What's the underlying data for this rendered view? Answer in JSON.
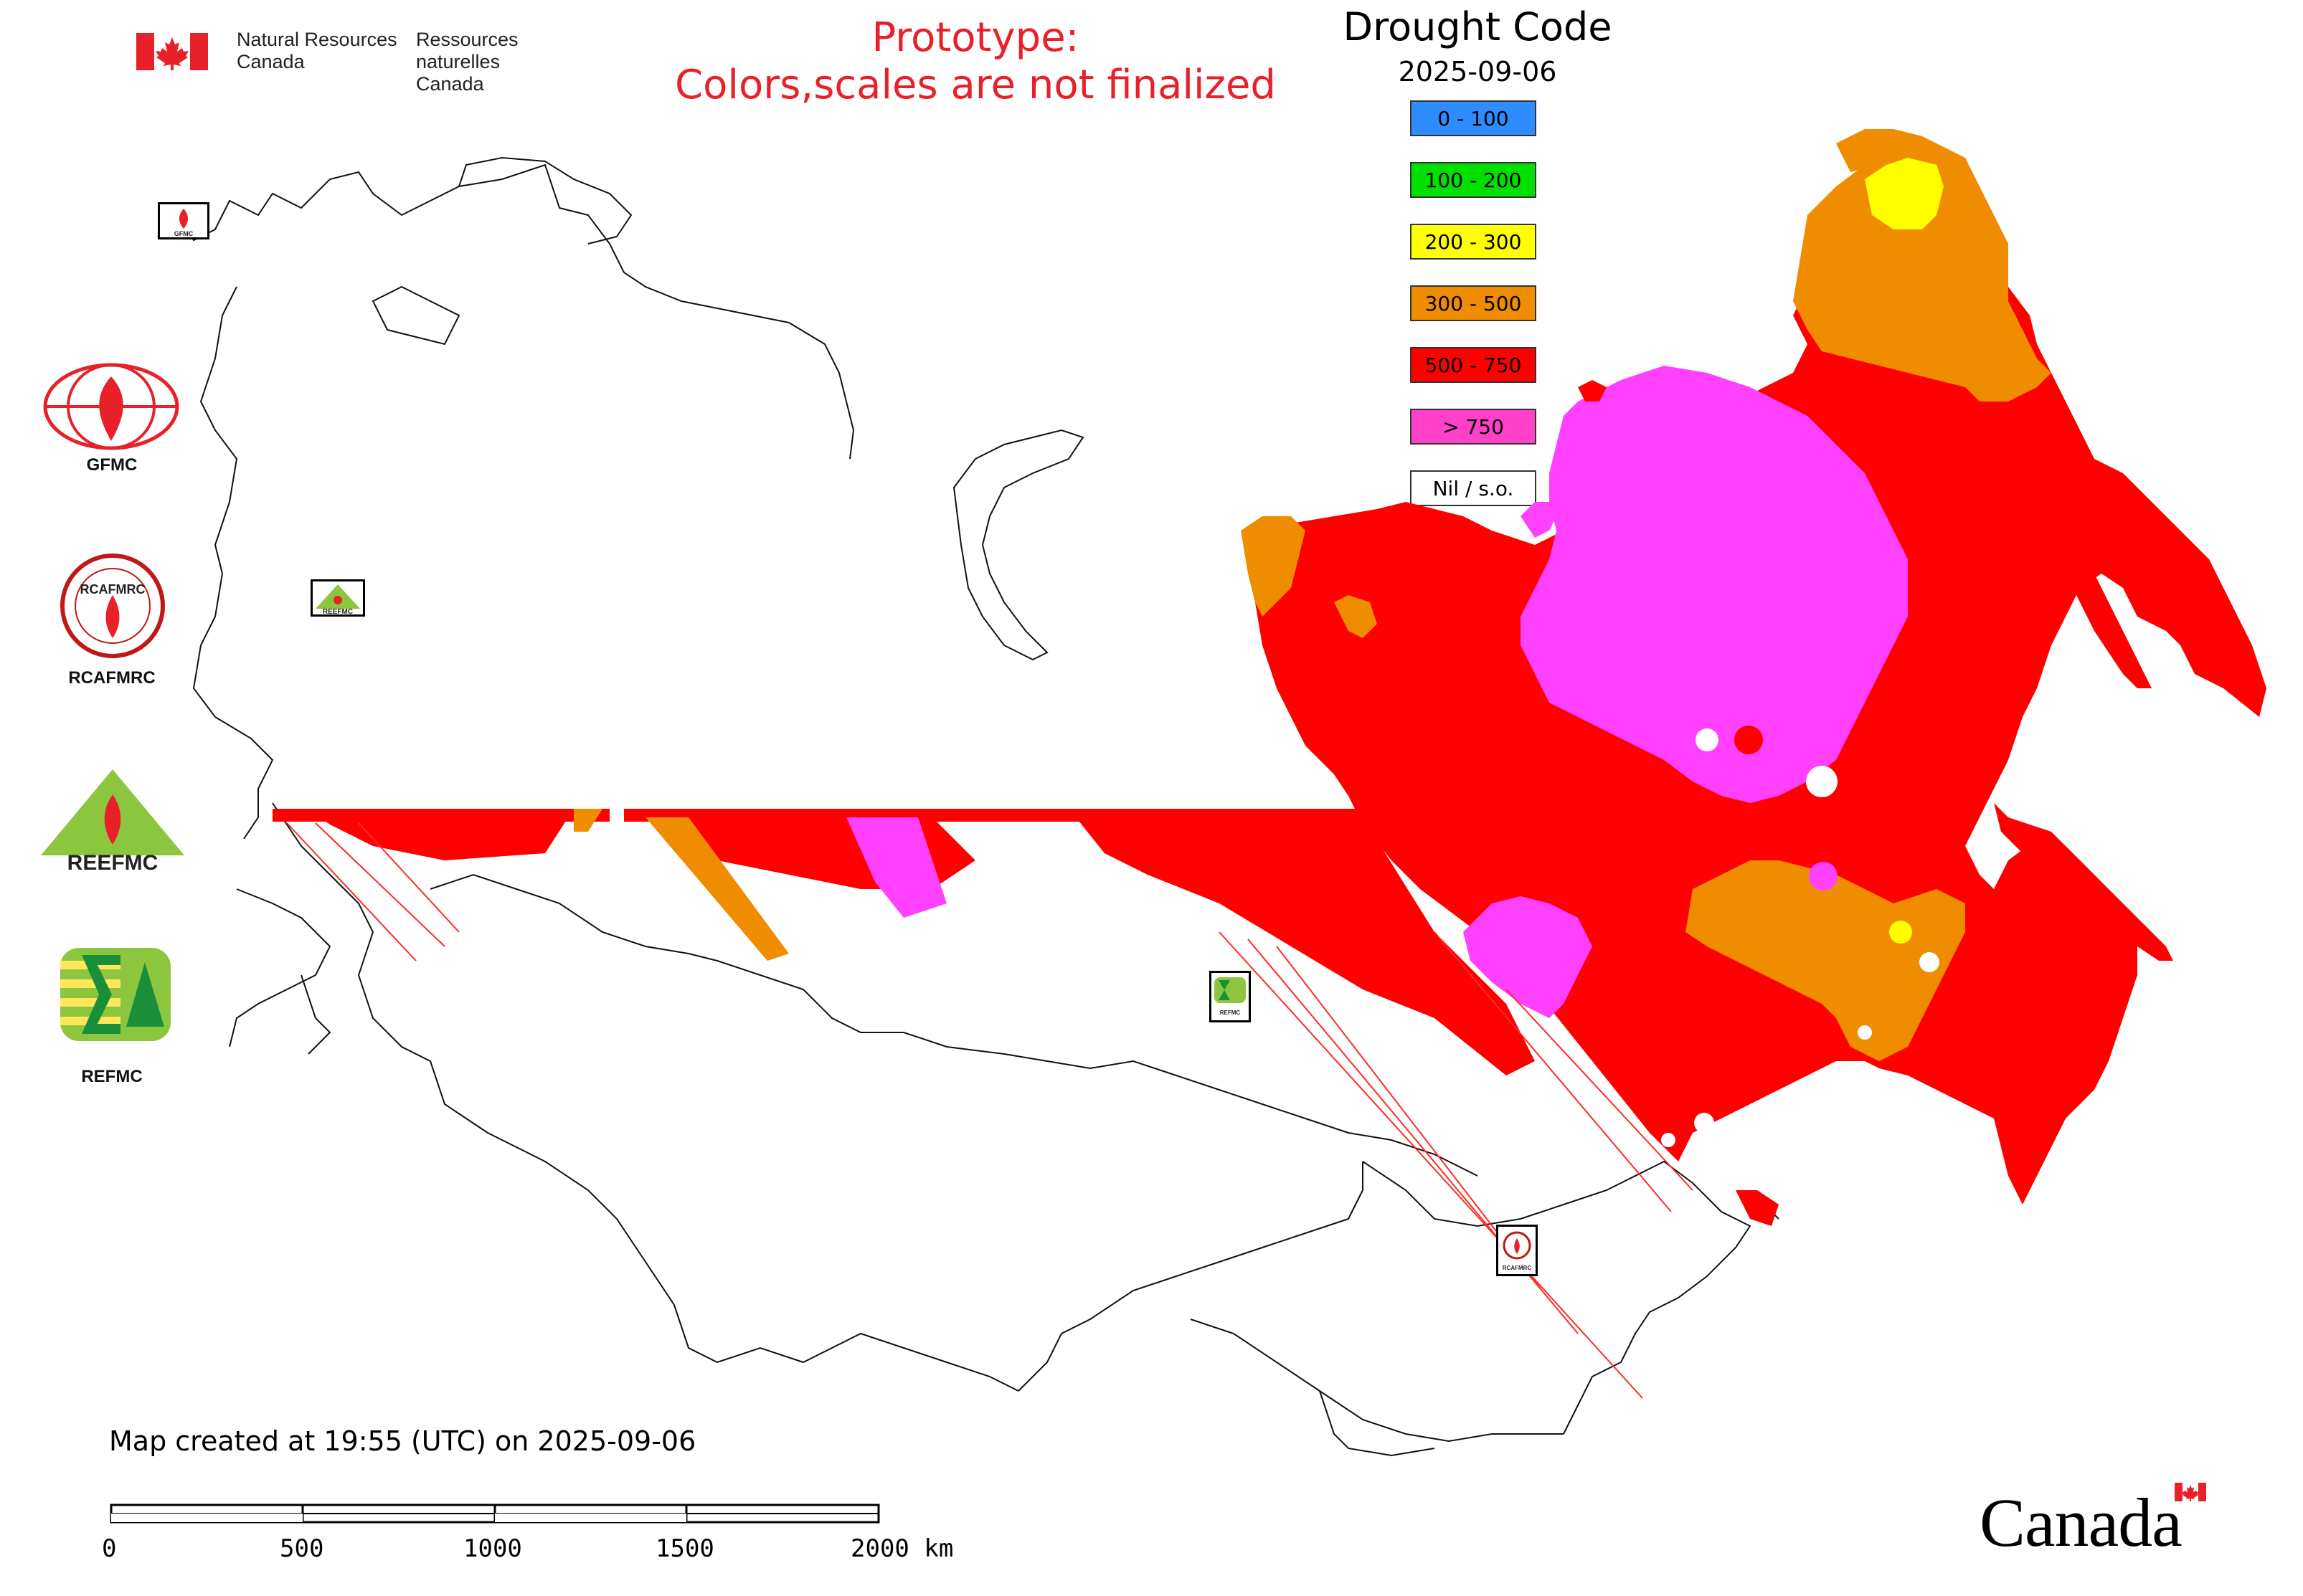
{
  "header": {
    "dept_en_line1": "Natural Resources",
    "dept_en_line2": "Canada",
    "dept_fr_line1": "Ressources naturelles",
    "dept_fr_line2": "Canada",
    "prototype_line1": "Prototype:",
    "prototype_line2": "Colors,scales are not finalized"
  },
  "legend": {
    "title": "Drought Code",
    "date": "2025-09-06",
    "classes": [
      {
        "label": "0 - 100",
        "color": "#2f8cff"
      },
      {
        "label": "100 - 200",
        "color": "#00e000"
      },
      {
        "label": "200 - 300",
        "color": "#ffff00"
      },
      {
        "label": "300 - 500",
        "color": "#f08c00"
      },
      {
        "label": "500 - 750",
        "color": "#ff0000"
      },
      {
        "label": "> 750",
        "color": "#ff40c8"
      },
      {
        "label": "Nil / s.o.",
        "color": "#ffffff"
      }
    ]
  },
  "agencies": {
    "gfmc": "GFMC",
    "rcafmrc": "RCAFMRC",
    "refmc": "REFMC",
    "reefmc_logo_text": "REEFMC",
    "rcafmrc_logo_text": "RCAFMRC",
    "map_marker_gfmc": "GFMC",
    "map_marker_reefmc": "REEFMC",
    "map_marker_refmc": "REFMC",
    "map_marker_rcafmrc": "RCAFMRC"
  },
  "footer": {
    "created": "Map created at 19:55 (UTC) on 2025-09-06",
    "wordmark": "Canada"
  },
  "scalebar": {
    "labels": [
      "0",
      "500",
      "1000",
      "1500",
      "2000 km"
    ]
  },
  "colors": {
    "very_high": "#ff0000",
    "high": "#f08c00",
    "moderate": "#ffff00",
    "extreme": "#ff40ff",
    "prototype_text": "#e8202a",
    "flag_red": "#e8202a"
  }
}
